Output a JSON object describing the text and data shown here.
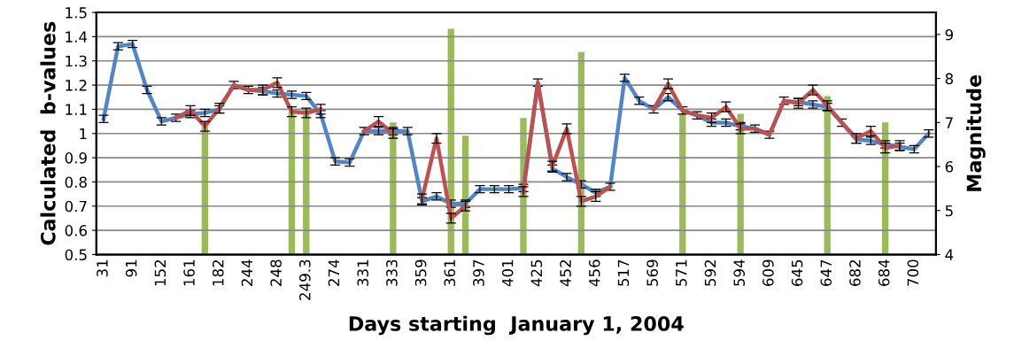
{
  "chart_data": {
    "type": "line",
    "xlabel": "Days starting  January 1, 2004",
    "ylabel": "Calculated  b-values",
    "y2label": "Magnitude",
    "categories": [
      "31",
      null,
      "91",
      null,
      "152",
      null,
      "161",
      null,
      "182",
      null,
      "244",
      null,
      "248",
      null,
      "249.3",
      null,
      "274",
      null,
      "331",
      null,
      "333",
      null,
      "359",
      null,
      "361",
      null,
      "397",
      null,
      "401",
      null,
      "425",
      null,
      "452",
      null,
      "456",
      null,
      "517",
      null,
      "569",
      null,
      "571",
      null,
      "592",
      null,
      "594",
      null,
      "609",
      null,
      "645",
      null,
      "647",
      null,
      "682",
      null,
      "684",
      null,
      "700",
      null
    ],
    "ylim": [
      0.5,
      1.5
    ],
    "yticks": [
      0.5,
      0.6,
      0.7,
      0.8,
      0.9,
      1,
      1.1,
      1.2,
      1.3,
      1.4,
      1.5
    ],
    "y2lim": [
      4,
      9.5
    ],
    "y2ticks": [
      4,
      5,
      6,
      7,
      8,
      9
    ],
    "grid": "y",
    "legend": false,
    "marker": "none",
    "line_style": "solid",
    "series": [
      {
        "type": "bar",
        "axis": "y2",
        "color": "#9bbb59",
        "values": [
          null,
          null,
          null,
          null,
          null,
          null,
          null,
          6.9,
          null,
          null,
          null,
          null,
          null,
          7.25,
          7.3,
          null,
          null,
          null,
          null,
          null,
          7.0,
          null,
          null,
          null,
          9.13,
          6.7,
          null,
          null,
          null,
          7.1,
          null,
          null,
          null,
          8.6,
          null,
          null,
          null,
          null,
          null,
          null,
          7.2,
          null,
          null,
          null,
          7.2,
          null,
          null,
          null,
          null,
          null,
          7.6,
          null,
          null,
          null,
          7.0,
          null,
          null,
          null
        ]
      },
      {
        "color": "#4f86c6",
        "values": [
          1.06,
          1.36,
          1.37,
          1.18,
          1.05,
          1.065,
          1.08,
          1.085,
          1.1,
          1.2,
          1.18,
          1.175,
          1.165,
          1.16,
          1.155,
          1.08,
          0.885,
          0.88,
          1.01,
          1.01,
          1.01,
          1.01,
          0.72,
          0.74,
          0.71,
          0.71,
          0.77,
          0.77,
          0.77,
          0.775,
          1.21,
          0.855,
          0.82,
          0.79,
          0.755,
          0.78,
          1.23,
          1.135,
          1.1,
          1.15,
          1.095,
          1.075,
          1.045,
          1.045,
          1.03,
          1.02,
          0.995,
          1.135,
          1.13,
          1.12,
          1.11,
          1.045,
          0.975,
          0.97,
          0.955,
          0.945,
          0.935,
          1.0
        ],
        "errors": [
          0.015,
          0.015,
          0.015,
          0.015,
          0.015,
          0.015,
          0.015,
          0.015,
          0.015,
          0.015,
          0.015,
          0.015,
          0.015,
          0.015,
          0.015,
          0.015,
          0.015,
          0.015,
          0.015,
          0.015,
          0.015,
          0.015,
          0.015,
          0.015,
          0.015,
          0.015,
          0.015,
          0.015,
          0.015,
          0.015,
          0.015,
          0.015,
          0.015,
          0.015,
          0.015,
          0.015,
          0.015,
          0.015,
          0.015,
          0.015,
          0.015,
          0.015,
          0.015,
          0.015,
          0.015,
          0.015,
          0.015,
          0.015,
          0.015,
          0.015,
          0.015,
          0.015,
          0.015,
          0.015,
          0.015,
          0.015,
          0.015,
          0.015
        ]
      },
      {
        "color": "#c0504d",
        "values": [
          null,
          null,
          null,
          null,
          null,
          1.065,
          1.095,
          1.03,
          1.105,
          1.2,
          1.18,
          1.18,
          1.21,
          1.09,
          1.085,
          1.1,
          null,
          null,
          1.01,
          1.05,
          1.0,
          null,
          0.73,
          0.98,
          0.65,
          0.7,
          null,
          null,
          null,
          0.76,
          1.21,
          0.865,
          1.02,
          0.72,
          0.74,
          0.78,
          null,
          null,
          1.1,
          1.205,
          1.095,
          1.075,
          1.065,
          1.11,
          1.02,
          1.02,
          0.995,
          1.135,
          1.125,
          1.18,
          1.115,
          1.045,
          0.98,
          1.01,
          0.94,
          0.95,
          null,
          null
        ],
        "errors": [
          null,
          null,
          null,
          null,
          null,
          null,
          0.02,
          0.02,
          0.02,
          null,
          null,
          0.02,
          0.02,
          0.02,
          0.02,
          0.02,
          null,
          null,
          null,
          0.02,
          0.02,
          null,
          0.02,
          0.02,
          0.02,
          0.02,
          null,
          null,
          null,
          0.02,
          null,
          0.02,
          0.02,
          0.02,
          0.02,
          null,
          null,
          null,
          null,
          0.02,
          null,
          null,
          0.02,
          0.02,
          0.02,
          null,
          null,
          null,
          0.02,
          0.02,
          0.02,
          null,
          0.02,
          0.02,
          0.02,
          0.02,
          null,
          null
        ]
      }
    ]
  }
}
